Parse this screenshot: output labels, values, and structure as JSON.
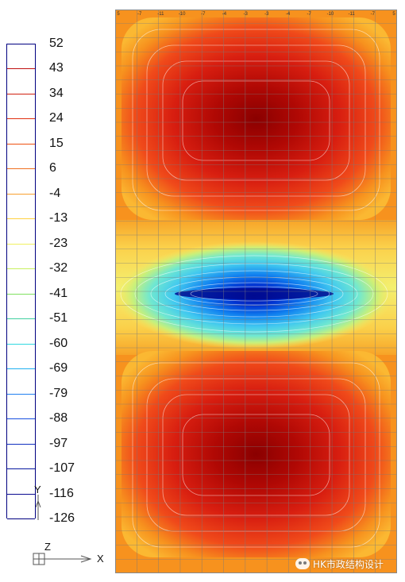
{
  "legend": {
    "labels": [
      "52",
      "43",
      "34",
      "24",
      "15",
      "6",
      "-4",
      "-13",
      "-23",
      "-32",
      "-41",
      "-51",
      "-60",
      "-69",
      "-79",
      "-88",
      "-97",
      "-107",
      "-116",
      "-126"
    ],
    "band_colors": [
      "#ffffff",
      "#ffffff",
      "#ffffff",
      "#ffffff",
      "#ffffff",
      "#ffffff",
      "#ffffff",
      "#ffffff",
      "#ffffff",
      "#ffffff",
      "#ffffff",
      "#ffffff",
      "#ffffff",
      "#ffffff",
      "#ffffff",
      "#ffffff",
      "#ffffff",
      "#ffffff",
      "#ffffff"
    ],
    "line_colors": [
      "#b00000",
      "#c01010",
      "#d02010",
      "#e03010",
      "#ee5010",
      "#f07020",
      "#f8a030",
      "#ffd040",
      "#f0f060",
      "#c8f060",
      "#80e060",
      "#40d0a0",
      "#30d8e0",
      "#20b0f0",
      "#2080f0",
      "#1850e0",
      "#1030c0",
      "#0818a0",
      "#0a0a90",
      "#000080"
    ]
  },
  "axes": {
    "x_label": "X",
    "y_label": "Y",
    "z_label": "Z"
  },
  "contour_colors": {
    "dark_red": "#9a0000",
    "red": "#d81e10",
    "orange_red": "#f04a1a",
    "orange": "#f7921e",
    "light_orange": "#fbb832",
    "yellow": "#fde05a",
    "cyan": "#55e0f0",
    "blue": "#1060e0",
    "navy": "#0010a0"
  },
  "top_row_labels": [
    "5",
    "-7",
    "-11",
    "-10",
    "-7",
    "-4",
    "-3",
    "-3",
    "-4",
    "-7",
    "-10",
    "-11",
    "-7",
    "5"
  ],
  "watermark": {
    "text": "HK市政结构设计"
  }
}
